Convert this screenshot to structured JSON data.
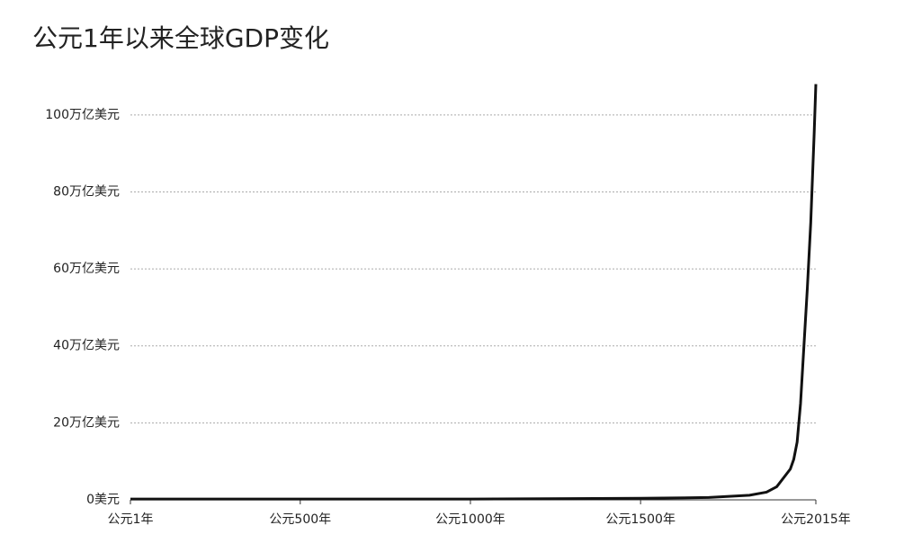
{
  "chart_data": {
    "type": "line",
    "title": "公元1年以来全球GDP变化",
    "x": [
      1,
      1000,
      1500,
      1600,
      1700,
      1820,
      1870,
      1900,
      1940,
      1950,
      1960,
      1970,
      1980,
      1990,
      2000,
      2010,
      2015
    ],
    "series": [
      {
        "color": "#111111",
        "values": [
          0.2,
          0.2,
          0.4,
          0.5,
          0.6,
          1.2,
          2.0,
          3.4,
          8,
          10.5,
          15,
          25,
          40,
          55,
          72,
          95,
          108
        ]
      }
    ],
    "xlim": [
      1,
      2015
    ],
    "xticks": [
      {
        "value": 1,
        "label": "公元1年"
      },
      {
        "value": 500,
        "label": "公元500年"
      },
      {
        "value": 1000,
        "label": "公元1000年"
      },
      {
        "value": 1500,
        "label": "公元1500年"
      },
      {
        "value": 2015,
        "label": "公元2015年"
      }
    ],
    "ylim": [
      0,
      110
    ],
    "yticks": [
      {
        "value": 0,
        "label": "0美元"
      },
      {
        "value": 20,
        "label": "20万亿美元"
      },
      {
        "value": 40,
        "label": "40万亿美元"
      },
      {
        "value": 60,
        "label": "60万亿美元"
      },
      {
        "value": 80,
        "label": "80万亿美元"
      },
      {
        "value": 100,
        "label": "100万亿美元"
      }
    ],
    "grid": true
  }
}
